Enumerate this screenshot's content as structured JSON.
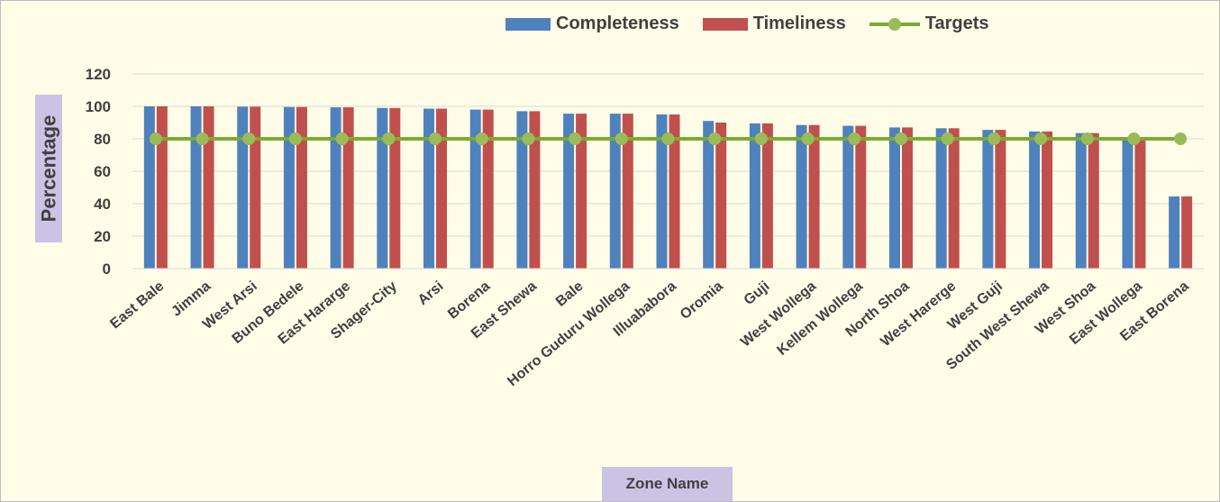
{
  "chart_data": {
    "type": "bar",
    "categories": [
      "East Bale",
      "Jimma",
      "West Arsi",
      "Buno Bedele",
      "East Hararge",
      "Shager-City",
      "Arsi",
      "Borena",
      "East Shewa",
      "Bale",
      "Horro Guduru Wollega",
      "Illuababora",
      "Oromia",
      "Guji",
      "West Wollega",
      "Kellem Wollega",
      "North Shoa",
      "West Harerge",
      "West Guji",
      "South West Shewa",
      "West Shoa",
      "East Wollega",
      "East Borena"
    ],
    "series": [
      {
        "name": "Completeness",
        "type": "bar",
        "color": "#4f81bd",
        "values": [
          100,
          100,
          99.8,
          99.6,
          99.4,
          99,
          98.6,
          98,
          97,
          95.5,
          95.5,
          95,
          91,
          89.5,
          88.5,
          88,
          87,
          86.5,
          85.5,
          84.5,
          83.5,
          80.5,
          44.5
        ]
      },
      {
        "name": "Timeliness",
        "type": "bar",
        "color": "#c0504d",
        "values": [
          100,
          100,
          99.8,
          99.6,
          99.4,
          99,
          98.6,
          98,
          97,
          95.5,
          95.5,
          95,
          90,
          89.5,
          88.5,
          88,
          87,
          86.5,
          85.5,
          84.5,
          83.5,
          80.5,
          44.5
        ]
      },
      {
        "name": "Targets",
        "type": "line",
        "color": "#7aab2f",
        "marker_color": "#9bbb59",
        "values": [
          80,
          80,
          80,
          80,
          80,
          80,
          80,
          80,
          80,
          80,
          80,
          80,
          80,
          80,
          80,
          80,
          80,
          80,
          80,
          80,
          80,
          80,
          80
        ]
      }
    ],
    "xlabel": "Zone Name",
    "ylabel": "Percentage",
    "ylim": [
      0,
      120
    ],
    "yticks": [
      0,
      20,
      40,
      60,
      80,
      100,
      120
    ],
    "grid": true,
    "legend": "top-center"
  }
}
